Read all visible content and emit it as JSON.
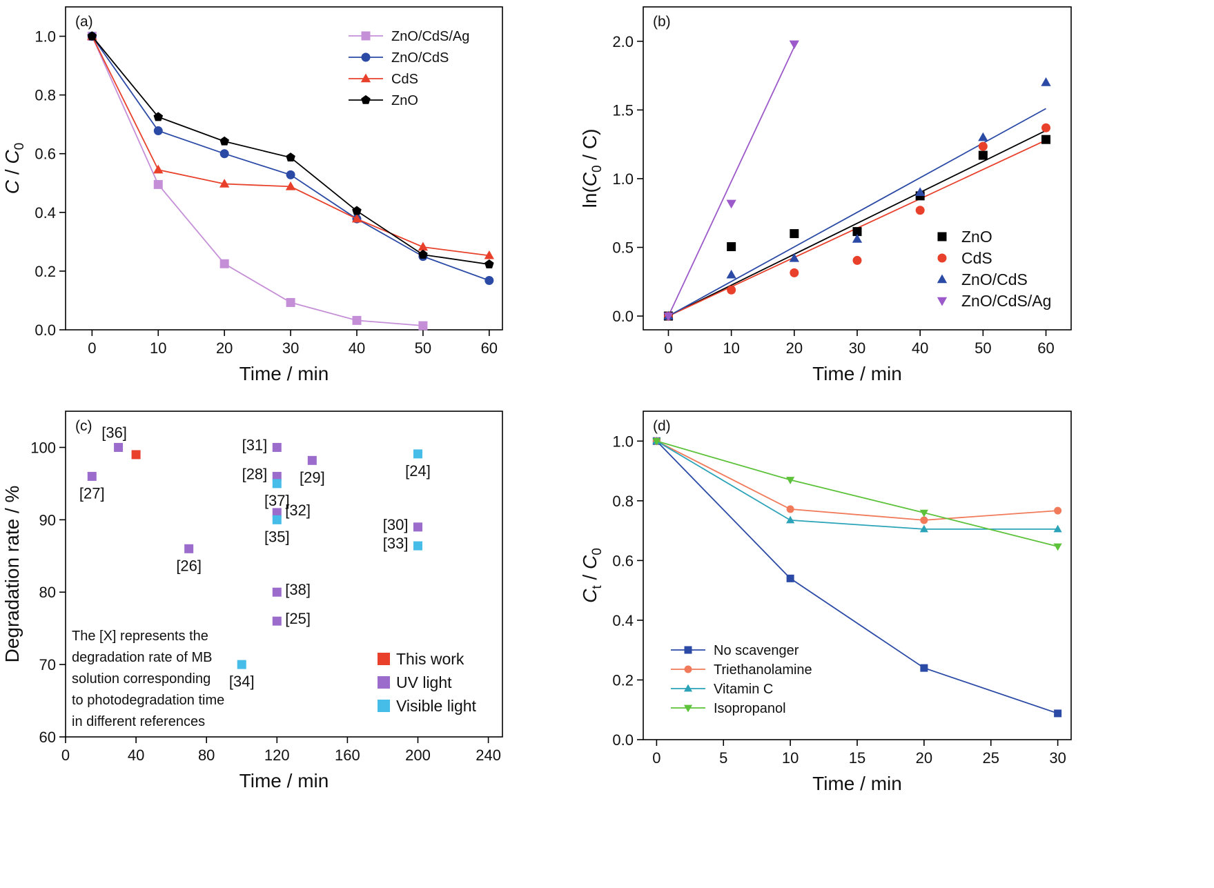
{
  "chart_data": [
    {
      "type": "line",
      "panel_label": "(a)",
      "xlabel": "Time / min",
      "ylabel_main": "C",
      "ylabel_sep": " / ",
      "ylabel_sub_base": "C",
      "ylabel_sub": "0",
      "xlim": [
        -4,
        62
      ],
      "ylim": [
        0,
        1.1
      ],
      "xticks": [
        0,
        10,
        20,
        30,
        40,
        50,
        60
      ],
      "xtick_labels": [
        "0",
        "10",
        "20",
        "30",
        "40",
        "50",
        "60"
      ],
      "yticks": [
        0,
        0.2,
        0.4,
        0.6,
        0.8,
        1.0
      ],
      "ytick_labels": [
        "0.0",
        "0.2",
        "0.4",
        "0.6",
        "0.8",
        "1.0"
      ],
      "legend_position": "top-right",
      "series": [
        {
          "name": "ZnO/CdS/Ag",
          "marker": "square",
          "color": "#c58fd8",
          "x": [
            0,
            10,
            20,
            30,
            40,
            50
          ],
          "y": [
            1.0,
            0.495,
            0.225,
            0.093,
            0.032,
            0.014
          ]
        },
        {
          "name": "ZnO/CdS",
          "marker": "circle",
          "color": "#2b4aa6",
          "x": [
            0,
            10,
            20,
            30,
            40,
            50,
            60
          ],
          "y": [
            1.0,
            0.678,
            0.6,
            0.528,
            0.378,
            0.25,
            0.168
          ]
        },
        {
          "name": "CdS",
          "marker": "triangle",
          "color": "#e8402a",
          "x": [
            0,
            10,
            20,
            30,
            40,
            50,
            60
          ],
          "y": [
            1.0,
            0.545,
            0.497,
            0.488,
            0.378,
            0.282,
            0.253
          ]
        },
        {
          "name": "ZnO",
          "marker": "pentagon",
          "color": "#000000",
          "x": [
            0,
            10,
            20,
            30,
            40,
            50,
            60
          ],
          "y": [
            1.0,
            0.725,
            0.642,
            0.587,
            0.405,
            0.256,
            0.223
          ]
        }
      ]
    },
    {
      "type": "scatter",
      "panel_label": "(b)",
      "xlabel": "Time / min",
      "ylabel_main": "ln(",
      "ylabel_sep": " / ",
      "ylabel_sub_base": "C",
      "ylabel_sub": "0",
      "ylabel_end": "C)",
      "xlim": [
        -4,
        64
      ],
      "ylim": [
        -0.1,
        2.25
      ],
      "xticks": [
        0,
        10,
        20,
        30,
        40,
        50,
        60
      ],
      "xtick_labels": [
        "0",
        "10",
        "20",
        "30",
        "40",
        "50",
        "60"
      ],
      "yticks": [
        0,
        0.5,
        1.0,
        1.5,
        2.0
      ],
      "ytick_labels": [
        "0.0",
        "0.5",
        "1.0",
        "1.5",
        "2.0"
      ],
      "legend_position": "bottom-right",
      "series": [
        {
          "name": "ZnO",
          "marker": "square",
          "color": "#000000",
          "x": [
            0,
            10,
            20,
            30,
            40,
            50,
            60
          ],
          "y": [
            0,
            0.505,
            0.6,
            0.615,
            0.875,
            1.17,
            1.285
          ],
          "fit": [
            [
              0,
              0
            ],
            [
              60,
              1.35
            ]
          ]
        },
        {
          "name": "CdS",
          "marker": "circle",
          "color": "#e8402a",
          "x": [
            0,
            10,
            20,
            30,
            40,
            50,
            60
          ],
          "y": [
            0,
            0.19,
            0.315,
            0.405,
            0.77,
            1.235,
            1.37
          ],
          "fit": [
            [
              0,
              0
            ],
            [
              60,
              1.28
            ]
          ]
        },
        {
          "name": "ZnO/CdS",
          "marker": "triangle",
          "color": "#2b4aa6",
          "x": [
            0,
            10,
            20,
            30,
            40,
            50,
            60
          ],
          "y": [
            0,
            0.3,
            0.42,
            0.56,
            0.9,
            1.3,
            1.7
          ],
          "fit": [
            [
              0,
              0
            ],
            [
              60,
              1.51
            ]
          ]
        },
        {
          "name": "ZnO/CdS/Ag",
          "marker": "triangle-down",
          "color": "#9b59c9",
          "x": [
            0,
            10,
            20
          ],
          "y": [
            0,
            0.82,
            1.98
          ],
          "fit": [
            [
              0,
              0
            ],
            [
              20,
              1.96
            ]
          ]
        }
      ]
    },
    {
      "type": "scatter",
      "panel_label": "(c)",
      "xlabel": "Time / min",
      "ylabel": "Degradation rate / %",
      "xlim": [
        0,
        248
      ],
      "ylim": [
        60,
        105
      ],
      "xticks": [
        0,
        40,
        80,
        120,
        160,
        200,
        240
      ],
      "xtick_labels": [
        "0",
        "40",
        "80",
        "120",
        "160",
        "200",
        "240"
      ],
      "yticks": [
        60,
        70,
        80,
        90,
        100
      ],
      "ytick_labels": [
        "60",
        "70",
        "80",
        "90",
        "100"
      ],
      "note": [
        "The [X] represents the",
        "degradation rate of MB",
        "solution corresponding",
        "to photodegradation time",
        "in different references"
      ],
      "legend_position": "bottom-right",
      "legend": [
        {
          "name": "This work",
          "color": "#e8402a"
        },
        {
          "name": "UV light",
          "color": "#9b6ccc"
        },
        {
          "name": "Visible light",
          "color": "#45bde8"
        }
      ],
      "points": [
        {
          "x": 40,
          "y": 99,
          "group": 0,
          "label": ""
        },
        {
          "x": 15,
          "y": 96,
          "group": 1,
          "label": "[27]",
          "lpos": "below"
        },
        {
          "x": 30,
          "y": 100,
          "group": 1,
          "label": "[36]",
          "lpos": "above-left"
        },
        {
          "x": 70,
          "y": 86,
          "group": 1,
          "label": "[26]",
          "lpos": "below"
        },
        {
          "x": 120,
          "y": 100,
          "group": 1,
          "label": "[31]",
          "lpos": "left"
        },
        {
          "x": 120,
          "y": 96,
          "group": 1,
          "label": "[28]",
          "lpos": "left"
        },
        {
          "x": 120,
          "y": 91,
          "group": 1,
          "label": "[32]",
          "lpos": "right"
        },
        {
          "x": 120,
          "y": 80,
          "group": 1,
          "label": "[38]",
          "lpos": "right"
        },
        {
          "x": 120,
          "y": 76,
          "group": 1,
          "label": "[25]",
          "lpos": "right"
        },
        {
          "x": 140,
          "y": 98.2,
          "group": 1,
          "label": "[29]",
          "lpos": "below"
        },
        {
          "x": 200,
          "y": 89,
          "group": 1,
          "label": "[30]",
          "lpos": "left"
        },
        {
          "x": 120,
          "y": 95,
          "group": 2,
          "label": "[37]",
          "lpos": "below"
        },
        {
          "x": 120,
          "y": 90,
          "group": 2,
          "label": "[35]",
          "lpos": "below"
        },
        {
          "x": 200,
          "y": 99.1,
          "group": 2,
          "label": "[24]",
          "lpos": "below"
        },
        {
          "x": 200,
          "y": 86.4,
          "group": 2,
          "label": "[33]",
          "lpos": "left"
        },
        {
          "x": 100,
          "y": 70,
          "group": 2,
          "label": "[34]",
          "lpos": "below"
        }
      ]
    },
    {
      "type": "line",
      "panel_label": "(d)",
      "xlabel": "Time / min",
      "ylabel_main": "C",
      "ylabel_main_sub": "t",
      "ylabel_sep": " / ",
      "ylabel_sub_base": "C",
      "ylabel_sub": "0",
      "xlim": [
        -1,
        31
      ],
      "ylim": [
        0,
        1.1
      ],
      "xticks": [
        0,
        5,
        10,
        15,
        20,
        25,
        30
      ],
      "xtick_labels": [
        "0",
        "5",
        "10",
        "15",
        "20",
        "25",
        "30"
      ],
      "yticks": [
        0,
        0.2,
        0.4,
        0.6,
        0.8,
        1.0
      ],
      "ytick_labels": [
        "0.0",
        "0.2",
        "0.4",
        "0.6",
        "0.8",
        "1.0"
      ],
      "legend_position": "bottom-left",
      "series": [
        {
          "name": "No scavenger",
          "marker": "square",
          "color": "#2b4aa6",
          "x": [
            0,
            10,
            20,
            30
          ],
          "y": [
            1.0,
            0.54,
            0.24,
            0.088
          ]
        },
        {
          "name": "Triethanolamine",
          "marker": "circle",
          "color": "#f07a5a",
          "x": [
            0,
            10,
            20,
            30
          ],
          "y": [
            1.0,
            0.772,
            0.735,
            0.767
          ]
        },
        {
          "name": "Vitamin C",
          "marker": "triangle",
          "color": "#2aa3b8",
          "x": [
            0,
            10,
            20,
            30
          ],
          "y": [
            1.0,
            0.735,
            0.705,
            0.705
          ]
        },
        {
          "name": "Isopropanol",
          "marker": "triangle-down",
          "color": "#5cc23a",
          "x": [
            0,
            10,
            20,
            30
          ],
          "y": [
            1.0,
            0.87,
            0.76,
            0.647
          ]
        }
      ]
    }
  ]
}
